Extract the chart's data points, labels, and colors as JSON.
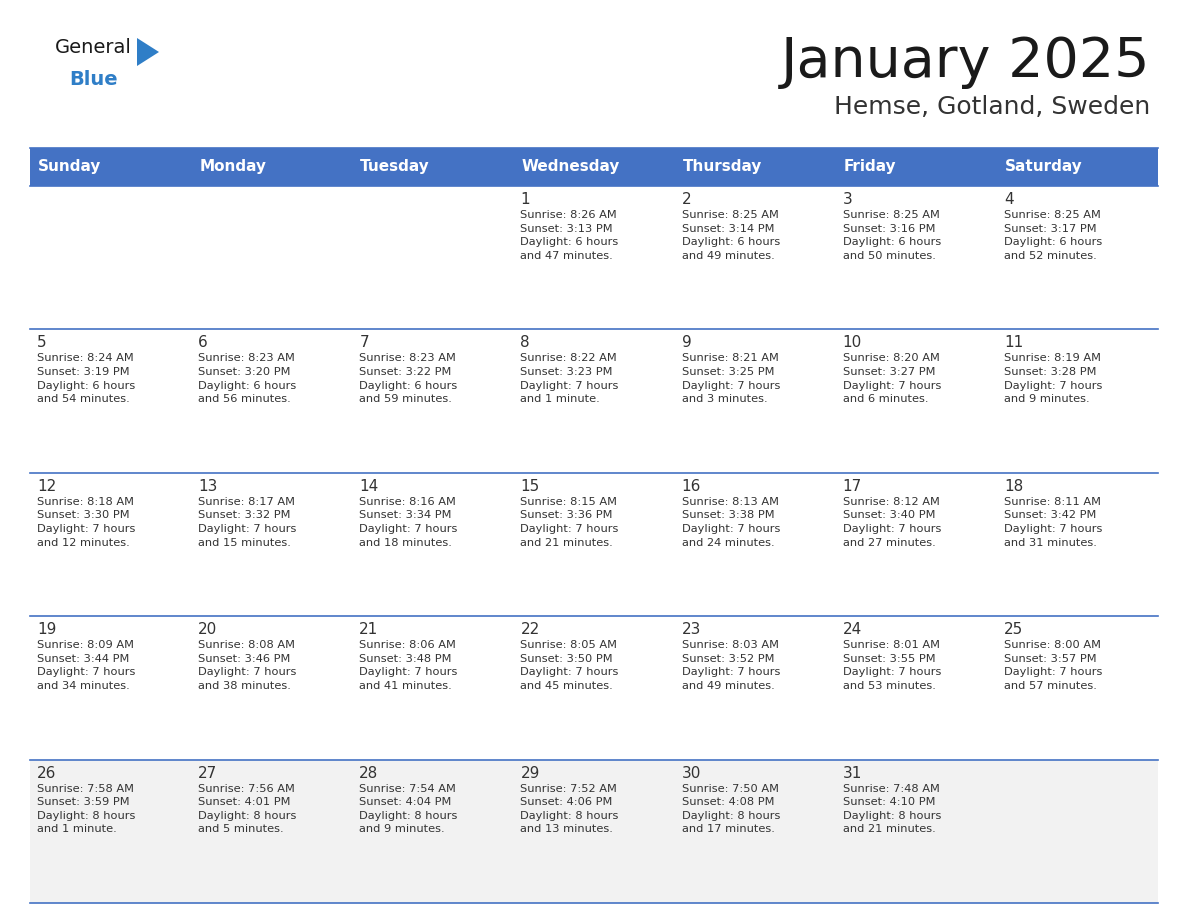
{
  "title": "January 2025",
  "subtitle": "Hemse, Gotland, Sweden",
  "days_of_week": [
    "Sunday",
    "Monday",
    "Tuesday",
    "Wednesday",
    "Thursday",
    "Friday",
    "Saturday"
  ],
  "header_bg": "#4472C4",
  "header_text": "#FFFFFF",
  "row_bg": "#FFFFFF",
  "row_bg_alt": "#F2F2F2",
  "cell_text": "#333333",
  "border_color": "#4472C4",
  "separator_color": "#4472C4",
  "title_color": "#1a1a1a",
  "subtitle_color": "#333333",
  "logo_general_color": "#1a1a1a",
  "logo_blue_color": "#2F7EC7",
  "logo_triangle_color": "#2F7EC7",
  "weeks": [
    [
      {
        "day": "",
        "info": ""
      },
      {
        "day": "",
        "info": ""
      },
      {
        "day": "",
        "info": ""
      },
      {
        "day": "1",
        "info": "Sunrise: 8:26 AM\nSunset: 3:13 PM\nDaylight: 6 hours\nand 47 minutes."
      },
      {
        "day": "2",
        "info": "Sunrise: 8:25 AM\nSunset: 3:14 PM\nDaylight: 6 hours\nand 49 minutes."
      },
      {
        "day": "3",
        "info": "Sunrise: 8:25 AM\nSunset: 3:16 PM\nDaylight: 6 hours\nand 50 minutes."
      },
      {
        "day": "4",
        "info": "Sunrise: 8:25 AM\nSunset: 3:17 PM\nDaylight: 6 hours\nand 52 minutes."
      }
    ],
    [
      {
        "day": "5",
        "info": "Sunrise: 8:24 AM\nSunset: 3:19 PM\nDaylight: 6 hours\nand 54 minutes."
      },
      {
        "day": "6",
        "info": "Sunrise: 8:23 AM\nSunset: 3:20 PM\nDaylight: 6 hours\nand 56 minutes."
      },
      {
        "day": "7",
        "info": "Sunrise: 8:23 AM\nSunset: 3:22 PM\nDaylight: 6 hours\nand 59 minutes."
      },
      {
        "day": "8",
        "info": "Sunrise: 8:22 AM\nSunset: 3:23 PM\nDaylight: 7 hours\nand 1 minute."
      },
      {
        "day": "9",
        "info": "Sunrise: 8:21 AM\nSunset: 3:25 PM\nDaylight: 7 hours\nand 3 minutes."
      },
      {
        "day": "10",
        "info": "Sunrise: 8:20 AM\nSunset: 3:27 PM\nDaylight: 7 hours\nand 6 minutes."
      },
      {
        "day": "11",
        "info": "Sunrise: 8:19 AM\nSunset: 3:28 PM\nDaylight: 7 hours\nand 9 minutes."
      }
    ],
    [
      {
        "day": "12",
        "info": "Sunrise: 8:18 AM\nSunset: 3:30 PM\nDaylight: 7 hours\nand 12 minutes."
      },
      {
        "day": "13",
        "info": "Sunrise: 8:17 AM\nSunset: 3:32 PM\nDaylight: 7 hours\nand 15 minutes."
      },
      {
        "day": "14",
        "info": "Sunrise: 8:16 AM\nSunset: 3:34 PM\nDaylight: 7 hours\nand 18 minutes."
      },
      {
        "day": "15",
        "info": "Sunrise: 8:15 AM\nSunset: 3:36 PM\nDaylight: 7 hours\nand 21 minutes."
      },
      {
        "day": "16",
        "info": "Sunrise: 8:13 AM\nSunset: 3:38 PM\nDaylight: 7 hours\nand 24 minutes."
      },
      {
        "day": "17",
        "info": "Sunrise: 8:12 AM\nSunset: 3:40 PM\nDaylight: 7 hours\nand 27 minutes."
      },
      {
        "day": "18",
        "info": "Sunrise: 8:11 AM\nSunset: 3:42 PM\nDaylight: 7 hours\nand 31 minutes."
      }
    ],
    [
      {
        "day": "19",
        "info": "Sunrise: 8:09 AM\nSunset: 3:44 PM\nDaylight: 7 hours\nand 34 minutes."
      },
      {
        "day": "20",
        "info": "Sunrise: 8:08 AM\nSunset: 3:46 PM\nDaylight: 7 hours\nand 38 minutes."
      },
      {
        "day": "21",
        "info": "Sunrise: 8:06 AM\nSunset: 3:48 PM\nDaylight: 7 hours\nand 41 minutes."
      },
      {
        "day": "22",
        "info": "Sunrise: 8:05 AM\nSunset: 3:50 PM\nDaylight: 7 hours\nand 45 minutes."
      },
      {
        "day": "23",
        "info": "Sunrise: 8:03 AM\nSunset: 3:52 PM\nDaylight: 7 hours\nand 49 minutes."
      },
      {
        "day": "24",
        "info": "Sunrise: 8:01 AM\nSunset: 3:55 PM\nDaylight: 7 hours\nand 53 minutes."
      },
      {
        "day": "25",
        "info": "Sunrise: 8:00 AM\nSunset: 3:57 PM\nDaylight: 7 hours\nand 57 minutes."
      }
    ],
    [
      {
        "day": "26",
        "info": "Sunrise: 7:58 AM\nSunset: 3:59 PM\nDaylight: 8 hours\nand 1 minute."
      },
      {
        "day": "27",
        "info": "Sunrise: 7:56 AM\nSunset: 4:01 PM\nDaylight: 8 hours\nand 5 minutes."
      },
      {
        "day": "28",
        "info": "Sunrise: 7:54 AM\nSunset: 4:04 PM\nDaylight: 8 hours\nand 9 minutes."
      },
      {
        "day": "29",
        "info": "Sunrise: 7:52 AM\nSunset: 4:06 PM\nDaylight: 8 hours\nand 13 minutes."
      },
      {
        "day": "30",
        "info": "Sunrise: 7:50 AM\nSunset: 4:08 PM\nDaylight: 8 hours\nand 17 minutes."
      },
      {
        "day": "31",
        "info": "Sunrise: 7:48 AM\nSunset: 4:10 PM\nDaylight: 8 hours\nand 21 minutes."
      },
      {
        "day": "",
        "info": ""
      }
    ]
  ]
}
